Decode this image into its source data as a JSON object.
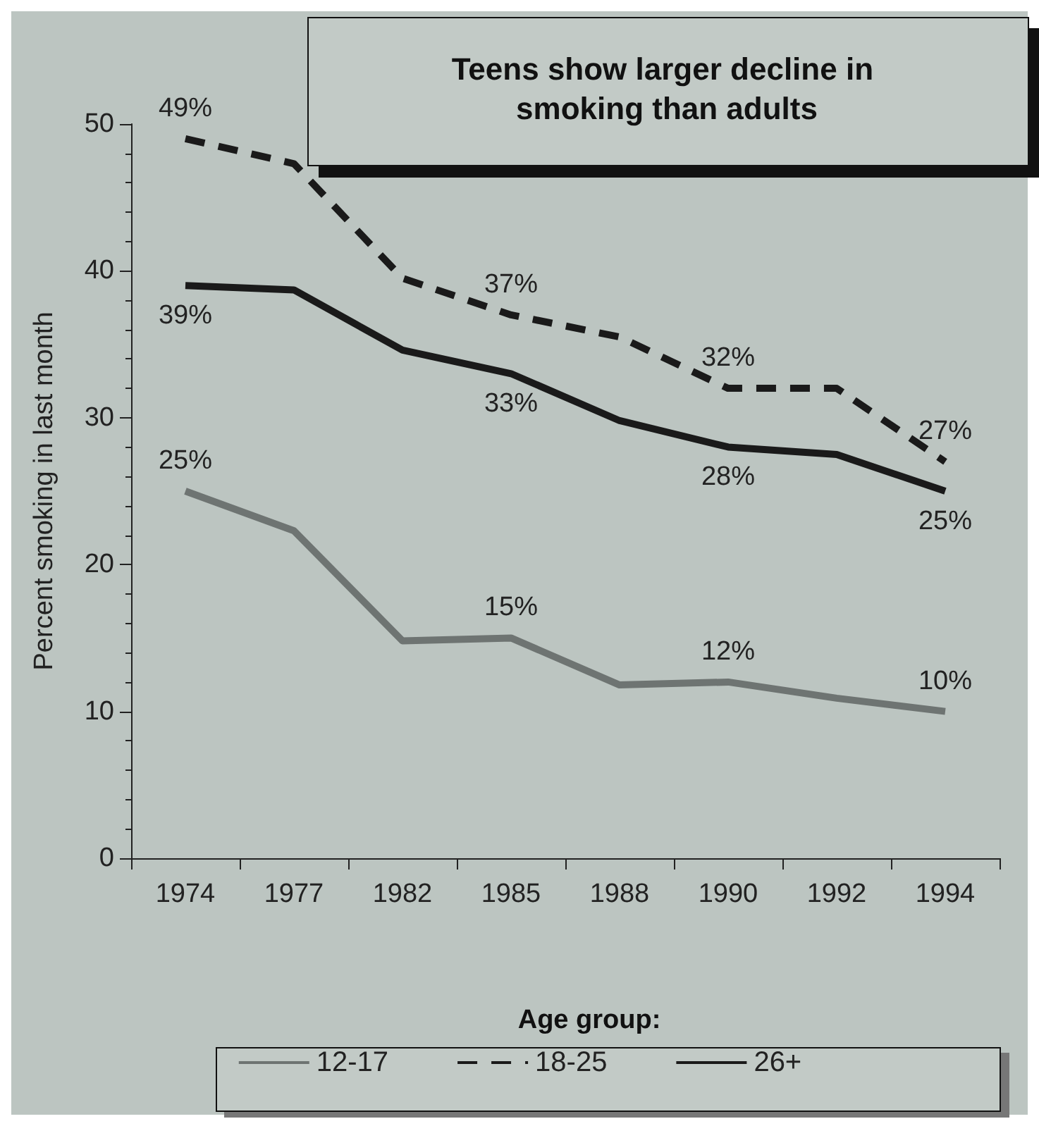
{
  "chart_data": {
    "type": "line",
    "title": "Teens show larger decline in smoking than adults",
    "ylabel": "Percent smoking in last month",
    "legend_title": "Age group:",
    "categories": [
      "1974",
      "1977",
      "1982",
      "1985",
      "1988",
      "1990",
      "1992",
      "1994"
    ],
    "series": [
      {
        "name": "12-17",
        "color": "#6e7472",
        "line_style": "solid",
        "values": [
          25,
          22.3,
          14.8,
          15,
          11.8,
          12,
          10.9,
          10
        ],
        "value_labels": [
          "25%",
          null,
          null,
          "15%",
          null,
          "12%",
          null,
          "10%"
        ]
      },
      {
        "name": "18-25",
        "color": "#1a1a1a",
        "line_style": "dashed",
        "values": [
          49,
          47.3,
          39.5,
          37,
          35.5,
          32,
          32,
          27
        ],
        "value_labels": [
          "49%",
          null,
          null,
          "37%",
          null,
          "32%",
          null,
          "27%"
        ]
      },
      {
        "name": "26+",
        "color": "#1a1a1a",
        "line_style": "solid",
        "values": [
          39,
          38.7,
          34.6,
          33,
          29.8,
          28,
          27.5,
          25
        ],
        "value_labels": [
          "39%",
          null,
          null,
          "33%",
          null,
          "28%",
          null,
          "25%"
        ]
      }
    ],
    "ylim": [
      0,
      50
    ],
    "yticks": [
      0,
      10,
      20,
      30,
      40,
      50
    ],
    "grid": false,
    "legend": "bottom",
    "marker": "none"
  }
}
